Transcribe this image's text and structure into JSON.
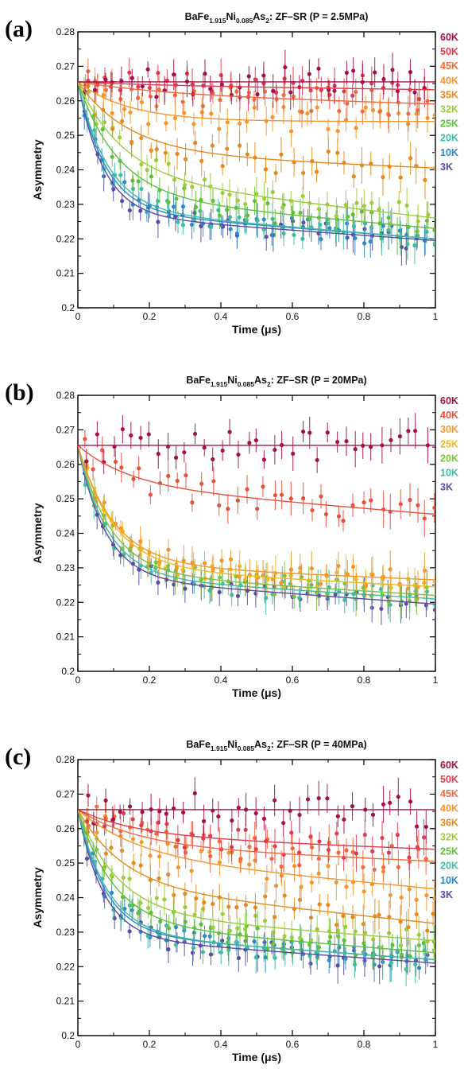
{
  "chart_data": [
    {
      "type": "scatter",
      "panel_label": "(a)",
      "title": {
        "prefix": "BaFe",
        "sub1": "1.915",
        "mid1": "Ni",
        "sub2": "0.085",
        "mid2": "As",
        "sub3": "2",
        "suffix": ": ZF–SR (P = 2.5MPa)"
      },
      "xlabel": "Time (μs)",
      "ylabel": "Asymmetry",
      "xlim": [
        0,
        1
      ],
      "ylim": [
        0.2,
        0.28
      ],
      "xticks": [
        "0",
        "0.2",
        "0.4",
        "0.6",
        "0.8",
        "1"
      ],
      "yticks": [
        "0.2",
        "0.21",
        "0.22",
        "0.23",
        "0.24",
        "0.25",
        "0.26",
        "0.27",
        "0.28"
      ],
      "legend_position": "right",
      "series": [
        {
          "name": "60K",
          "color": "#a3104a",
          "a0": 0.2655,
          "fast": 0.0,
          "rate": 10,
          "slope": 0.0,
          "noise": 0.0045
        },
        {
          "name": "50K",
          "color": "#e03a4e",
          "a0": 0.2655,
          "fast": 0.0008,
          "rate": 5,
          "slope": 0.0015,
          "noise": 0.004
        },
        {
          "name": "45K",
          "color": "#ef6a3b",
          "a0": 0.2655,
          "fast": 0.0035,
          "rate": 4,
          "slope": 0.003,
          "noise": 0.004
        },
        {
          "name": "40K",
          "color": "#f3962e",
          "a0": 0.2655,
          "fast": 0.0115,
          "rate": 7,
          "slope": 0.0,
          "noise": 0.004
        },
        {
          "name": "35K",
          "color": "#e48a1c",
          "a0": 0.2655,
          "fast": 0.0205,
          "rate": 7,
          "slope": 0.0045,
          "noise": 0.004
        },
        {
          "name": "32K",
          "color": "#9ccc3a",
          "a0": 0.2655,
          "fast": 0.0275,
          "rate": 8,
          "slope": 0.012,
          "noise": 0.0035
        },
        {
          "name": "25K",
          "color": "#5fbf3a",
          "a0": 0.2655,
          "fast": 0.033,
          "rate": 9,
          "slope": 0.0095,
          "noise": 0.0035
        },
        {
          "name": "20K",
          "color": "#3dbda0",
          "a0": 0.2655,
          "fast": 0.037,
          "rate": 12,
          "slope": 0.0085,
          "noise": 0.0035
        },
        {
          "name": "10K",
          "color": "#2f86c8",
          "a0": 0.2655,
          "fast": 0.0375,
          "rate": 13,
          "slope": 0.008,
          "noise": 0.003
        },
        {
          "name": "3K",
          "color": "#5a4aa6",
          "a0": 0.2655,
          "fast": 0.0385,
          "rate": 14,
          "slope": 0.0075,
          "noise": 0.003
        }
      ]
    },
    {
      "type": "scatter",
      "panel_label": "(b)",
      "title": {
        "prefix": "BaFe",
        "sub1": "1.915",
        "mid1": "Ni",
        "sub2": "0.085",
        "mid2": "As",
        "sub3": "2",
        "suffix": ": ZF–SR (P = 20MPa)"
      },
      "xlabel": "Time (μs)",
      "ylabel": "Asymmetry",
      "xlim": [
        0,
        1
      ],
      "ylim": [
        0.2,
        0.28
      ],
      "xticks": [
        "0",
        "0.2",
        "0.4",
        "0.6",
        "0.8",
        "1"
      ],
      "yticks": [
        "0.2",
        "0.21",
        "0.22",
        "0.23",
        "0.24",
        "0.25",
        "0.26",
        "0.27",
        "0.28"
      ],
      "legend_position": "right",
      "series": [
        {
          "name": "60K",
          "color": "#a3104a",
          "a0": 0.2655,
          "fast": 0.0,
          "rate": 10,
          "slope": 0.0,
          "noise": 0.005
        },
        {
          "name": "40K",
          "color": "#e8503c",
          "a0": 0.2655,
          "fast": 0.0115,
          "rate": 7,
          "slope": 0.0085,
          "noise": 0.0045
        },
        {
          "name": "30K",
          "color": "#f3962e",
          "a0": 0.2655,
          "fast": 0.0345,
          "rate": 10,
          "slope": 0.0045,
          "noise": 0.003
        },
        {
          "name": "25K",
          "color": "#f0b81e",
          "a0": 0.2655,
          "fast": 0.0355,
          "rate": 10,
          "slope": 0.0055,
          "noise": 0.003
        },
        {
          "name": "20K",
          "color": "#7cc23a",
          "a0": 0.2655,
          "fast": 0.037,
          "rate": 11,
          "slope": 0.0065,
          "noise": 0.003
        },
        {
          "name": "10K",
          "color": "#3dbda0",
          "a0": 0.2655,
          "fast": 0.038,
          "rate": 12,
          "slope": 0.0065,
          "noise": 0.003
        },
        {
          "name": "3K",
          "color": "#5a4aa6",
          "a0": 0.2655,
          "fast": 0.0385,
          "rate": 13,
          "slope": 0.0075,
          "noise": 0.0025
        }
      ]
    },
    {
      "type": "scatter",
      "panel_label": "(c)",
      "title": {
        "prefix": "BaFe",
        "sub1": "1.915",
        "mid1": "Ni",
        "sub2": "0.085",
        "mid2": "As",
        "sub3": "2",
        "suffix": ": ZF–SR (P = 40MPa)"
      },
      "xlabel": "Time (μs)",
      "ylabel": "Asymmetry",
      "xlim": [
        0,
        1
      ],
      "ylim": [
        0.2,
        0.28
      ],
      "xticks": [
        "0",
        "0.2",
        "0.4",
        "0.6",
        "0.8",
        "1"
      ],
      "yticks": [
        "0.2",
        "0.21",
        "0.22",
        "0.23",
        "0.24",
        "0.25",
        "0.26",
        "0.27",
        "0.28"
      ],
      "legend_position": "right",
      "series": [
        {
          "name": "60K",
          "color": "#a3104a",
          "a0": 0.2655,
          "fast": 0.0,
          "rate": 10,
          "slope": 0.0,
          "noise": 0.005
        },
        {
          "name": "50K",
          "color": "#e03a4e",
          "a0": 0.2655,
          "fast": 0.0075,
          "rate": 6,
          "slope": 0.004,
          "noise": 0.004
        },
        {
          "name": "45K",
          "color": "#ef6a3b",
          "a0": 0.2655,
          "fast": 0.0105,
          "rate": 6,
          "slope": 0.0045,
          "noise": 0.004
        },
        {
          "name": "40K",
          "color": "#f3962e",
          "a0": 0.2655,
          "fast": 0.0135,
          "rate": 6,
          "slope": 0.0095,
          "noise": 0.004
        },
        {
          "name": "36K",
          "color": "#e48a1c",
          "a0": 0.2655,
          "fast": 0.022,
          "rate": 8,
          "slope": 0.011,
          "noise": 0.0035
        },
        {
          "name": "32K",
          "color": "#9ccc3a",
          "a0": 0.2655,
          "fast": 0.03,
          "rate": 9,
          "slope": 0.008,
          "noise": 0.0035
        },
        {
          "name": "25K",
          "color": "#5fbf3a",
          "a0": 0.2655,
          "fast": 0.033,
          "rate": 10,
          "slope": 0.0085,
          "noise": 0.0035
        },
        {
          "name": "20K",
          "color": "#3dbda0",
          "a0": 0.2655,
          "fast": 0.036,
          "rate": 12,
          "slope": 0.0075,
          "noise": 0.0035
        },
        {
          "name": "10K",
          "color": "#2f86c8",
          "a0": 0.2655,
          "fast": 0.036,
          "rate": 13,
          "slope": 0.0075,
          "noise": 0.003
        },
        {
          "name": "3K",
          "color": "#5a4aa6",
          "a0": 0.2655,
          "fast": 0.037,
          "rate": 14,
          "slope": 0.0075,
          "noise": 0.003
        }
      ]
    }
  ]
}
